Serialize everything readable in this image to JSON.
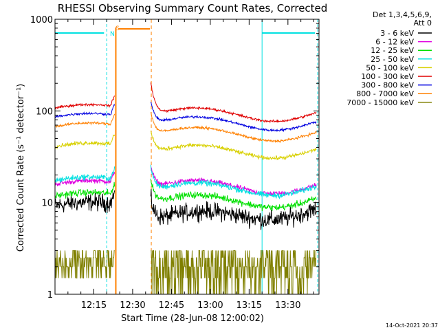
{
  "chart_data": {
    "type": "line",
    "title": "RHESSI Observing Summary Count Rates, Corrected",
    "xlabel": "Start Time (28-Jun-08 12:00:02)",
    "ylabel": "Corrected Count Rate (s⁻¹ detector⁻¹)",
    "yscale": "log",
    "ylim": [
      1,
      1000
    ],
    "xlim_minutes": [
      0,
      102
    ],
    "x_ticks": [
      {
        "minute": 15,
        "label": "12:15"
      },
      {
        "minute": 30,
        "label": "12:30"
      },
      {
        "minute": 45,
        "label": "12:45"
      },
      {
        "minute": 60,
        "label": "13:00"
      },
      {
        "minute": 75,
        "label": "13:15"
      },
      {
        "minute": 90,
        "label": "13:30"
      }
    ],
    "y_ticks": [
      {
        "value": 1,
        "label": "1"
      },
      {
        "value": 10,
        "label": "10"
      },
      {
        "value": 100,
        "label": "100"
      },
      {
        "value": 1000,
        "label": "1000"
      }
    ],
    "legend_header": [
      "Det 1,3,4,5,6,9,",
      "Att 0"
    ],
    "legend_position": "right",
    "series": [
      {
        "name": "3 - 6 keV",
        "color": "#000000",
        "level_before": 9,
        "level_after": 6.2,
        "level_end": 8.5,
        "noise": 0.18
      },
      {
        "name": "6 - 12 keV",
        "color": "#e000e0",
        "level_before": 15.5,
        "level_after": 14.5,
        "level_end": 15.5,
        "noise": 0.05
      },
      {
        "name": "12 - 25 keV",
        "color": "#00e000",
        "level_before": 11.5,
        "level_after": 10,
        "level_end": 11,
        "noise": 0.07
      },
      {
        "name": "25 - 50 keV",
        "color": "#00e0e0",
        "level_before": 17,
        "level_after": 13.5,
        "level_end": 15,
        "noise": 0.06
      },
      {
        "name": "50 - 100 keV",
        "color": "#d8d000",
        "level_before": 40,
        "level_after": 35,
        "level_end": 38,
        "noise": 0.04
      },
      {
        "name": "100 - 300 keV",
        "color": "#e00000",
        "level_before": 105,
        "level_after": 90,
        "level_end": 95,
        "noise": 0.025
      },
      {
        "name": "300 - 800 keV",
        "color": "#0000e0",
        "level_before": 84,
        "level_after": 72,
        "level_end": 76,
        "noise": 0.025
      },
      {
        "name": "800 - 7000 keV",
        "color": "#ff8000",
        "level_before": 66,
        "level_after": 55,
        "level_end": 58,
        "noise": 0.025
      },
      {
        "name": "7000 - 15000 keV",
        "color": "#808000",
        "level_before": 2.3,
        "level_after": 2.3,
        "level_end": 2.3,
        "noise": 0.3
      }
    ],
    "gaps": {
      "data_gap_minutes": [
        24,
        37
      ],
      "saa_minutes": [
        23.5,
        37.2
      ],
      "night_minutes": [
        [
          0,
          20
        ],
        [
          80,
          101.5
        ]
      ]
    },
    "flags": [
      {
        "label": "N",
        "color": "#00e0e0"
      },
      {
        "label": "S",
        "color": "#ff8000"
      }
    ],
    "timestamp": "14-Oct-2021 20:37"
  }
}
